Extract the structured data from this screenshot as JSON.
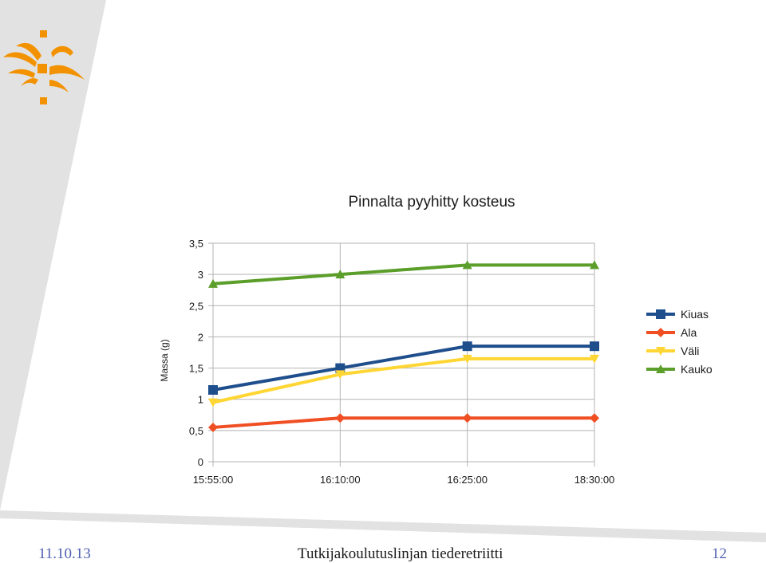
{
  "footer": {
    "date": "11.10.13",
    "title": "Tutkijakoulutuslinjan tiederetriitti",
    "page": "12"
  },
  "logo": {
    "name": "flame-logo-icon",
    "color": "#f39200"
  },
  "chart_data": {
    "type": "line",
    "title": "Pinnalta pyyhitty kosteus",
    "xlabel": "",
    "ylabel": "Massa (g)",
    "categories": [
      "15:55:00",
      "16:10:00",
      "16:25:00",
      "18:30:00"
    ],
    "ylim": [
      0,
      3.5
    ],
    "yticks": [
      "0",
      "0,5",
      "1",
      "1,5",
      "2",
      "2,5",
      "3",
      "3,5"
    ],
    "ytick_values": [
      0,
      0.5,
      1,
      1.5,
      2,
      2.5,
      3,
      3.5
    ],
    "grid": true,
    "legend_position": "right",
    "series": [
      {
        "name": "Kiuas",
        "values": [
          1.15,
          1.5,
          1.85,
          1.85
        ],
        "color": "#1f4e8c",
        "marker": "square"
      },
      {
        "name": "Ala",
        "values": [
          0.55,
          0.7,
          0.7,
          0.7
        ],
        "color": "#f04e23",
        "marker": "diamond"
      },
      {
        "name": "Väli",
        "values": [
          0.95,
          1.4,
          1.65,
          1.65
        ],
        "color": "#ffd633",
        "marker": "triangle-down"
      },
      {
        "name": "Kauko",
        "values": [
          2.85,
          3.0,
          3.15,
          3.15
        ],
        "color": "#5b9e2a",
        "marker": "triangle-up"
      }
    ]
  }
}
